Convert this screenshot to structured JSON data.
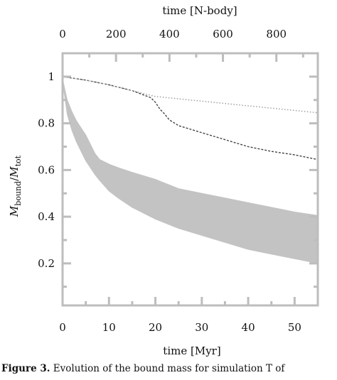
{
  "chart_data": {
    "type": "area",
    "title": "",
    "x_axis": {
      "label": "time [Myr]",
      "range": [
        0,
        55
      ],
      "ticks": [
        0,
        10,
        20,
        30,
        40,
        50
      ]
    },
    "x2_axis": {
      "label": "time [N-body]",
      "range": [
        0,
        955
      ],
      "ticks": [
        0,
        200,
        400,
        600,
        800
      ]
    },
    "y_axis": {
      "label": "M_bound/M_tot",
      "range": [
        0.02,
        1.1
      ],
      "ticks": [
        0.2,
        0.4,
        0.6,
        0.8,
        1.0
      ],
      "tick_labels": [
        "0.2",
        "0.4",
        "0.6",
        "0.8",
        "1"
      ]
    },
    "series": [
      {
        "style": "shaded band",
        "color": "#c3c3c3",
        "x": [
          0,
          1,
          2,
          3,
          4,
          5,
          6,
          7,
          8,
          10,
          12,
          15,
          20,
          25,
          30,
          35,
          40,
          45,
          50,
          55
        ],
        "y_upper": [
          0.99,
          0.9,
          0.85,
          0.81,
          0.78,
          0.75,
          0.71,
          0.67,
          0.645,
          0.625,
          0.61,
          0.59,
          0.56,
          0.52,
          0.5,
          0.48,
          0.46,
          0.44,
          0.42,
          0.405
        ],
        "y_lower": [
          0.98,
          0.84,
          0.77,
          0.72,
          0.68,
          0.64,
          0.61,
          0.58,
          0.555,
          0.51,
          0.48,
          0.44,
          0.39,
          0.35,
          0.32,
          0.29,
          0.26,
          0.24,
          0.22,
          0.2
        ]
      },
      {
        "style": "dashed",
        "color": "#444444",
        "x": [
          0,
          5,
          10,
          15,
          19,
          20,
          21,
          22,
          23,
          25,
          30,
          35,
          40,
          45,
          50,
          55
        ],
        "y": [
          1.0,
          0.985,
          0.965,
          0.94,
          0.91,
          0.89,
          0.86,
          0.84,
          0.815,
          0.79,
          0.76,
          0.73,
          0.7,
          0.68,
          0.665,
          0.645
        ]
      },
      {
        "style": "dotted",
        "color": "#9a9a9a",
        "x": [
          0,
          5,
          10,
          15,
          20,
          25,
          30,
          35,
          40,
          45,
          50,
          55
        ],
        "y": [
          1.0,
          0.985,
          0.965,
          0.94,
          0.915,
          0.905,
          0.895,
          0.885,
          0.875,
          0.865,
          0.855,
          0.845
        ]
      }
    ],
    "grid": false,
    "legend": "none"
  },
  "caption": {
    "label": "Figure 3.",
    "text": "Evolution of the bound mass for simulation T of"
  }
}
